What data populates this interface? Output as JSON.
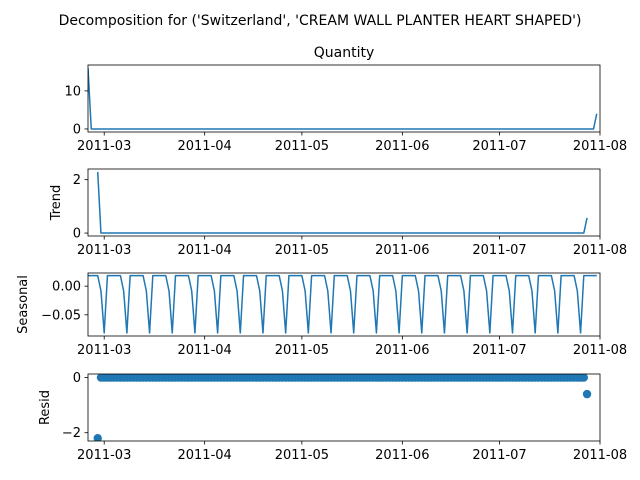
{
  "suptitle": "Decomposition for ('Switzerland', 'CREAM WALL PLANTER HEART SHAPED')",
  "line_color": "#1f77b4",
  "chart_data": [
    {
      "id": "observed",
      "type": "line",
      "title": "Quantity",
      "ylabel": "",
      "x_start": "2011-02-24",
      "x_end": "2011-07-31",
      "xlim": [
        "2011-02-24",
        "2011-08-01"
      ],
      "ylim": [
        -0.8,
        16.8
      ],
      "yticks": [
        0,
        10
      ],
      "xticks": [
        "2011-03",
        "2011-04",
        "2011-05",
        "2011-06",
        "2011-07",
        "2011-08"
      ],
      "points": [
        [
          "2011-02-24",
          16
        ],
        [
          "2011-02-25",
          0
        ],
        [
          "2011-07-30",
          0
        ],
        [
          "2011-07-31",
          4
        ]
      ]
    },
    {
      "id": "trend",
      "type": "line",
      "title": "",
      "ylabel": "Trend",
      "xlim": [
        "2011-02-24",
        "2011-08-01"
      ],
      "ylim": [
        -0.11,
        2.4
      ],
      "yticks": [
        0,
        2
      ],
      "xticks": [
        "2011-03",
        "2011-04",
        "2011-05",
        "2011-06",
        "2011-07",
        "2011-08"
      ],
      "points": [
        [
          "2011-02-27",
          2.29
        ],
        [
          "2011-02-28",
          0
        ],
        [
          "2011-07-27",
          0
        ],
        [
          "2011-07-28",
          0.57
        ]
      ]
    },
    {
      "id": "seasonal",
      "type": "line",
      "title": "",
      "ylabel": "Seasonal",
      "x_start": "2011-02-24",
      "x_end": "2011-07-31",
      "xlim": [
        "2011-02-24",
        "2011-08-01"
      ],
      "ylim": [
        -0.087,
        0.023
      ],
      "yticks": [
        0.0,
        -0.05
      ],
      "ytick_labels": [
        "0.00",
        "−0.05"
      ],
      "xticks": [
        "2011-03",
        "2011-04",
        "2011-05",
        "2011-06",
        "2011-07",
        "2011-08"
      ],
      "period_pattern": [
        0.0184,
        0.0184,
        0.0184,
        0.0184,
        -0.0082,
        -0.0816,
        0.0184
      ]
    },
    {
      "id": "resid",
      "type": "scatter",
      "title": "",
      "ylabel": "Resid",
      "x_start": "2011-02-27",
      "x_end": "2011-07-28",
      "xlim": [
        "2011-02-24",
        "2011-08-01"
      ],
      "ylim": [
        -2.3,
        0.13
      ],
      "yticks": [
        0,
        -2
      ],
      "ytick_labels": [
        "0",
        "−2"
      ],
      "xticks": [
        "2011-03",
        "2011-04",
        "2011-05",
        "2011-06",
        "2011-07",
        "2011-08"
      ],
      "outliers": [
        [
          "2011-02-27",
          -2.2
        ],
        [
          "2011-07-28",
          -0.6
        ]
      ],
      "baseline": 0.0
    }
  ]
}
